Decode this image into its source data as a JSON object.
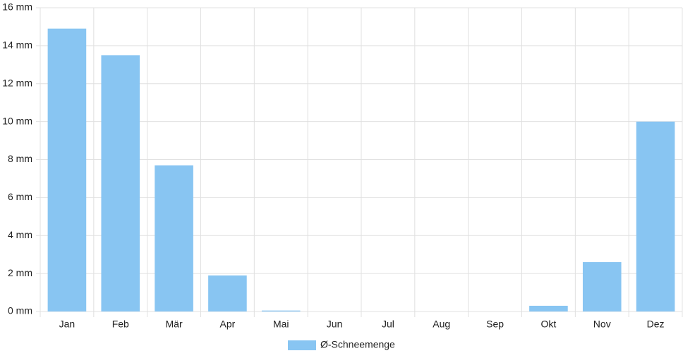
{
  "chart_data": {
    "type": "bar",
    "categories": [
      "Jan",
      "Feb",
      "Mär",
      "Apr",
      "Mai",
      "Jun",
      "Jul",
      "Aug",
      "Sep",
      "Okt",
      "Nov",
      "Dez"
    ],
    "series": [
      {
        "name": "Ø-Schneemenge",
        "color": "#88c5f2",
        "values": [
          14.9,
          13.5,
          7.7,
          1.9,
          0.05,
          0,
          0,
          0,
          0,
          0.3,
          2.6,
          10
        ]
      }
    ],
    "ylim": [
      0,
      16
    ],
    "yticks": [
      {
        "value": 0,
        "label": "0 mm"
      },
      {
        "value": 2,
        "label": "2 mm"
      },
      {
        "value": 4,
        "label": "4 mm"
      },
      {
        "value": 6,
        "label": "6 mm"
      },
      {
        "value": 8,
        "label": "8 mm"
      },
      {
        "value": 10,
        "label": "10 mm"
      },
      {
        "value": 12,
        "label": "12 mm"
      },
      {
        "value": 14,
        "label": "14 mm"
      },
      {
        "value": 16,
        "label": "16 mm"
      }
    ],
    "grid": true,
    "legend": "bottom"
  }
}
